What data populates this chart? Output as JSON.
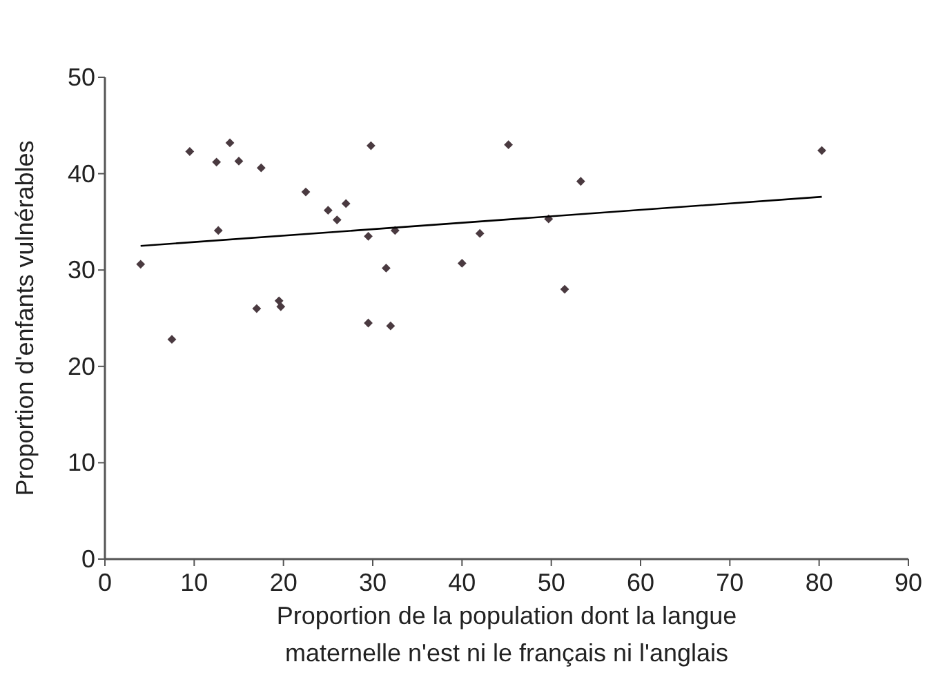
{
  "chart_data": {
    "type": "scatter",
    "xlabel": "Proportion de la population dont la langue\nmaternelle n'est ni le français ni l'anglais",
    "ylabel": "Proportion d'enfants vulnérables",
    "xlim": [
      0,
      90
    ],
    "ylim": [
      0,
      50
    ],
    "xticks": [
      0,
      10,
      20,
      30,
      40,
      50,
      60,
      70,
      80,
      90
    ],
    "yticks": [
      0,
      10,
      20,
      30,
      40,
      50
    ],
    "grid": false,
    "series": [
      {
        "marker": "diamond",
        "color": "#4a3a40",
        "x": [
          4,
          7.5,
          9.5,
          12.5,
          12.7,
          14,
          15,
          17,
          17.5,
          19.5,
          19.7,
          22.5,
          25,
          26,
          27,
          29.5,
          29.5,
          29.8,
          31.5,
          32,
          32.5,
          40,
          42,
          45.2,
          49.7,
          51.5,
          53.3,
          80.3
        ],
        "values": [
          30.6,
          22.8,
          42.3,
          41.2,
          34.1,
          43.2,
          41.3,
          26,
          40.6,
          26.8,
          26.2,
          38.1,
          36.2,
          35.2,
          36.9,
          33.5,
          24.5,
          42.9,
          30.2,
          24.2,
          34.1,
          30.7,
          33.8,
          43,
          35.3,
          28,
          39.2,
          42.4
        ]
      },
      {
        "type": "line",
        "color": "#000000",
        "x": [
          4,
          80.3
        ],
        "values": [
          32.5,
          37.6
        ]
      }
    ]
  }
}
